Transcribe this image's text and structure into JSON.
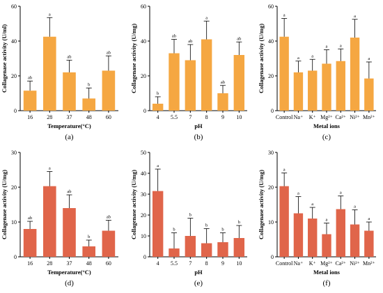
{
  "figure": {
    "colors": {
      "top_bars": "#F5A742",
      "bottom_bars": "#E0654A",
      "axis": "#000000"
    }
  },
  "chart_data": [
    {
      "id": "a",
      "type": "bar",
      "panel_label": "(a)",
      "xlabel": "Temperature(°C)",
      "ylabel": "Collagenase activity (U/ml)",
      "ylim": [
        0,
        60
      ],
      "yticks": [
        "0",
        "20",
        "40",
        "60"
      ],
      "categories": [
        "16",
        "28",
        "37",
        "48",
        "60"
      ],
      "values": [
        11.5,
        42.5,
        22,
        7,
        23
      ],
      "errors": [
        5.5,
        11,
        7,
        6,
        8.5
      ],
      "significance": [
        "ab",
        "a",
        "ab",
        "b",
        "ab"
      ],
      "color": "#F5A742"
    },
    {
      "id": "b",
      "type": "bar",
      "panel_label": "(b)",
      "xlabel": "pH",
      "ylabel": "Collagenase activity (U/mg)",
      "ylim": [
        0,
        60
      ],
      "yticks": [
        "0",
        "20",
        "40",
        "60"
      ],
      "categories": [
        "4",
        "5.5",
        "7",
        "8",
        "9",
        "10"
      ],
      "values": [
        4,
        33,
        29,
        41,
        10,
        32
      ],
      "errors": [
        4,
        8,
        9,
        10.5,
        4.5,
        7.5
      ],
      "significance": [
        "b",
        "ab",
        "ab",
        "a",
        "ab",
        "ab"
      ],
      "color": "#F5A742"
    },
    {
      "id": "c",
      "type": "bar",
      "panel_label": "(c)",
      "xlabel": "Metal ions",
      "ylabel": "Collagenase activity (U/mg)",
      "ylim": [
        0,
        60
      ],
      "yticks": [
        "0",
        "20",
        "40",
        "60"
      ],
      "categories": [
        "Control",
        "Na⁺",
        "K⁺",
        "Mg²⁺",
        "Ca²⁺",
        "Ni²⁺",
        "Mn²⁺"
      ],
      "values": [
        42.5,
        22,
        23,
        27,
        28.5,
        42,
        18.5
      ],
      "errors": [
        10.5,
        6.5,
        6.5,
        8,
        7,
        10.5,
        9.5
      ],
      "significance": [
        "a",
        "a",
        "a",
        "a",
        "a",
        "a",
        "a"
      ],
      "color": "#F5A742"
    },
    {
      "id": "d",
      "type": "bar",
      "panel_label": "(d)",
      "xlabel": "Temperature(°C)",
      "ylabel": "Collagenase activity (U/mg)",
      "ylim": [
        0,
        30
      ],
      "yticks": [
        "0",
        "10",
        "20",
        "30"
      ],
      "categories": [
        "16",
        "28",
        "37",
        "48",
        "60"
      ],
      "values": [
        8,
        20.3,
        14,
        3,
        7.5
      ],
      "errors": [
        2.2,
        4.2,
        3.8,
        1.8,
        3
      ],
      "significance": [
        "ab",
        "a",
        "ab",
        "b",
        "ab"
      ],
      "color": "#E0654A"
    },
    {
      "id": "e",
      "type": "bar",
      "panel_label": "(e)",
      "xlabel": "pH",
      "ylabel": "Collagenase activity (U/mg)",
      "ylim": [
        0,
        50
      ],
      "yticks": [
        "0",
        "10",
        "20",
        "30",
        "40",
        "50"
      ],
      "categories": [
        "4",
        "5.5",
        "7",
        "8",
        "9",
        "10"
      ],
      "values": [
        31.5,
        4,
        10,
        6.5,
        7,
        9
      ],
      "errors": [
        10.5,
        7.5,
        8.5,
        7,
        4.5,
        6
      ],
      "significance": [
        "a",
        "b",
        "b",
        "b",
        "b",
        "b"
      ],
      "color": "#E0654A"
    },
    {
      "id": "f",
      "type": "bar",
      "panel_label": "(f)",
      "xlabel": "Metal ions",
      "ylabel": "Collagenase activity (U/mg)",
      "ylim": [
        0,
        30
      ],
      "yticks": [
        "0",
        "10",
        "20",
        "30"
      ],
      "categories": [
        "Control",
        "Na⁺",
        "K⁺",
        "Mg²⁺",
        "Ca²⁺",
        "Ni²⁺",
        "Mn²⁺"
      ],
      "values": [
        20.3,
        12.5,
        11,
        6.5,
        13.7,
        9.3,
        7.5
      ],
      "errors": [
        3.8,
        4.8,
        3.2,
        3.2,
        3.8,
        4.2,
        2.5
      ],
      "significance": [
        "a",
        "a",
        "a",
        "a",
        "a",
        "a",
        "a"
      ],
      "color": "#E0654A"
    }
  ]
}
